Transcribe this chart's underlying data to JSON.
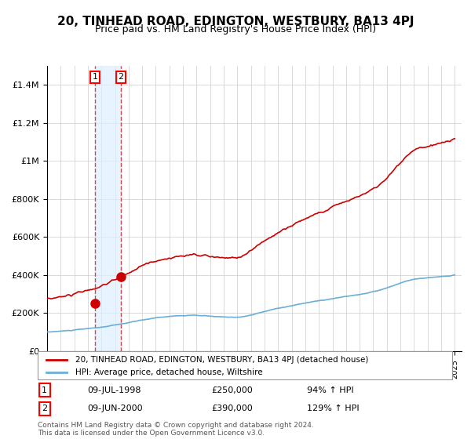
{
  "title": "20, TINHEAD ROAD, EDINGTON, WESTBURY, BA13 4PJ",
  "subtitle": "Price paid vs. HM Land Registry's House Price Index (HPI)",
  "title_fontsize": 11,
  "subtitle_fontsize": 9,
  "x_start_year": 1995,
  "x_end_year": 2025,
  "ylim": [
    0,
    1500000
  ],
  "yticks": [
    0,
    200000,
    400000,
    600000,
    800000,
    1000000,
    1200000,
    1400000
  ],
  "ytick_labels": [
    "£0",
    "£200K",
    "£400K",
    "£600K",
    "£800K",
    "£1M",
    "£1.2M",
    "£1.4M"
  ],
  "hpi_color": "#6baed6",
  "property_color": "#cc0000",
  "background_color": "#ffffff",
  "grid_color": "#cccccc",
  "purchase1_year": 1998.52,
  "purchase1_price": 250000,
  "purchase1_label": "1",
  "purchase1_date": "09-JUL-1998",
  "purchase1_hpi_pct": "94% ↑ HPI",
  "purchase2_year": 2000.44,
  "purchase2_price": 390000,
  "purchase2_label": "2",
  "purchase2_date": "09-JUN-2000",
  "purchase2_hpi_pct": "129% ↑ HPI",
  "legend_property": "20, TINHEAD ROAD, EDINGTON, WESTBURY, BA13 4PJ (detached house)",
  "legend_hpi": "HPI: Average price, detached house, Wiltshire",
  "footnote": "Contains HM Land Registry data © Crown copyright and database right 2024.\nThis data is licensed under the Open Government Licence v3.0.",
  "shaded_region_color": "#ddeeff"
}
